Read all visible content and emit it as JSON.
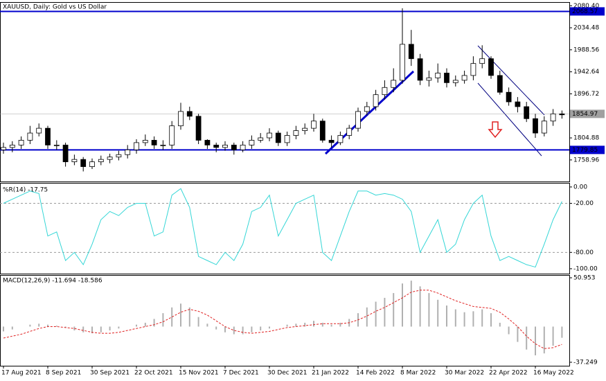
{
  "chart_data": [
    {
      "type": "candlestick",
      "title": "XAUUSD, Daily:  Gold vs US Dollar",
      "open": [
        1780,
        1785,
        1790,
        1800,
        1815,
        1825,
        1790,
        1790,
        1755,
        1760,
        1745,
        1755,
        1760,
        1765,
        1770,
        1780,
        1795,
        1800,
        1790,
        1790,
        1830,
        1860,
        1850,
        1800,
        1790,
        1785,
        1790,
        1780,
        1790,
        1800,
        1805,
        1815,
        1795,
        1810,
        1820,
        1825,
        1840,
        1800,
        1795,
        1810,
        1825,
        1860,
        1870,
        1895,
        1910,
        1925,
        2000,
        1970,
        1925,
        1930,
        1940,
        1920,
        1925,
        1935,
        1960,
        1970,
        1935,
        1900,
        1880,
        1870,
        1845,
        1815,
        1840,
        1855
      ],
      "high": [
        1795,
        1798,
        1808,
        1830,
        1835,
        1830,
        1800,
        1795,
        1770,
        1765,
        1762,
        1768,
        1772,
        1778,
        1790,
        1802,
        1812,
        1808,
        1800,
        1840,
        1878,
        1870,
        1855,
        1802,
        1795,
        1798,
        1795,
        1798,
        1810,
        1815,
        1825,
        1820,
        1818,
        1830,
        1835,
        1855,
        1845,
        1810,
        1818,
        1832,
        1868,
        1880,
        1905,
        1925,
        1950,
        2075,
        2030,
        1980,
        1945,
        1960,
        1950,
        1935,
        1945,
        1975,
        1998,
        1975,
        1945,
        1910,
        1890,
        1880,
        1855,
        1850,
        1865,
        1862
      ],
      "low": [
        1772,
        1775,
        1782,
        1792,
        1808,
        1782,
        1780,
        1745,
        1748,
        1735,
        1740,
        1748,
        1752,
        1758,
        1762,
        1772,
        1788,
        1782,
        1780,
        1782,
        1822,
        1842,
        1792,
        1782,
        1775,
        1778,
        1770,
        1775,
        1782,
        1795,
        1798,
        1788,
        1788,
        1802,
        1812,
        1818,
        1795,
        1785,
        1790,
        1802,
        1818,
        1852,
        1862,
        1885,
        1900,
        1918,
        1955,
        1915,
        1912,
        1920,
        1910,
        1912,
        1918,
        1925,
        1950,
        1928,
        1895,
        1872,
        1858,
        1838,
        1805,
        1808,
        1830,
        1845
      ],
      "close": [
        1785,
        1790,
        1800,
        1815,
        1825,
        1790,
        1790,
        1755,
        1760,
        1745,
        1755,
        1760,
        1765,
        1770,
        1780,
        1795,
        1800,
        1790,
        1790,
        1830,
        1860,
        1850,
        1800,
        1790,
        1785,
        1790,
        1780,
        1790,
        1800,
        1805,
        1815,
        1795,
        1810,
        1820,
        1825,
        1840,
        1800,
        1795,
        1810,
        1825,
        1860,
        1870,
        1895,
        1910,
        1925,
        2000,
        1970,
        1925,
        1930,
        1940,
        1920,
        1925,
        1935,
        1960,
        1970,
        1935,
        1900,
        1880,
        1870,
        1845,
        1815,
        1840,
        1855,
        1853
      ],
      "ylim": [
        1714,
        2088
      ],
      "yticks": [
        {
          "value": 2080.4,
          "label": "2080.40"
        },
        {
          "value": 2034.48,
          "label": "2034.48"
        },
        {
          "value": 1988.56,
          "label": "1988.56"
        },
        {
          "value": 1942.64,
          "label": "1942.64"
        },
        {
          "value": 1896.72,
          "label": "1896.72"
        },
        {
          "value": 1804.88,
          "label": "1804.88"
        },
        {
          "value": 1758.96,
          "label": "1758.96"
        }
      ],
      "levels": [
        {
          "value": 2068.57,
          "label": "2068.57",
          "color": "#0000cc"
        },
        {
          "value": 1779.85,
          "label": "1779.85",
          "color": "#0000cc"
        }
      ],
      "current_price": {
        "value": 1854.97,
        "label": "1854.97",
        "color": "#a0a0a0"
      }
    },
    {
      "type": "line",
      "title": "%R(14) -17.75",
      "color": "#33d6d6",
      "values": [
        -20,
        -15,
        -10,
        -5,
        -8,
        -60,
        -55,
        -90,
        -80,
        -95,
        -70,
        -40,
        -30,
        -35,
        -25,
        -20,
        -20,
        -60,
        -55,
        -10,
        -2,
        -25,
        -85,
        -90,
        -95,
        -80,
        -90,
        -70,
        -30,
        -25,
        -10,
        -60,
        -40,
        -20,
        -15,
        -10,
        -80,
        -90,
        -60,
        -30,
        -5,
        -5,
        -10,
        -8,
        -10,
        -15,
        -30,
        -80,
        -60,
        -40,
        -80,
        -70,
        -40,
        -20,
        -10,
        -60,
        -90,
        -85,
        -90,
        -95,
        -98,
        -70,
        -40,
        -17.75
      ],
      "ylim": [
        -106,
        5
      ],
      "yticks": [
        {
          "value": 0,
          "label": "0.00"
        },
        {
          "value": -20,
          "label": "-20.00"
        },
        {
          "value": -80,
          "label": "-80.00"
        },
        {
          "value": -100,
          "label": "-100.00"
        }
      ],
      "levels": [
        -20,
        -80
      ]
    },
    {
      "type": "macd",
      "title": "MACD(12,26,9) -11.694 -18.586",
      "series": [
        {
          "name": "MACD",
          "color": "#b0b0b0",
          "values": [
            -5,
            -3,
            0,
            2,
            3,
            2,
            1,
            -1,
            -4,
            -6,
            -7,
            -6,
            -4,
            -2,
            0,
            2,
            4,
            8,
            14,
            20,
            24,
            20,
            10,
            3,
            -3,
            -6,
            -8,
            -8,
            -6,
            -4,
            -2,
            0,
            2,
            3,
            4,
            6,
            4,
            2,
            4,
            8,
            14,
            20,
            26,
            30,
            35,
            45,
            48,
            42,
            35,
            28,
            22,
            18,
            15,
            16,
            18,
            14,
            4,
            -8,
            -16,
            -24,
            -30,
            -28,
            -20,
            -11.694
          ]
        },
        {
          "name": "Signal",
          "color": "#e02020",
          "values": [
            -12,
            -10,
            -8,
            -5,
            -2,
            0,
            0,
            -1,
            -2,
            -4,
            -6,
            -7,
            -7,
            -6,
            -4,
            -2,
            0,
            2,
            5,
            10,
            15,
            18,
            16,
            12,
            6,
            0,
            -4,
            -6,
            -7,
            -6,
            -5,
            -3,
            -1,
            0,
            1,
            2,
            3,
            3,
            3,
            4,
            7,
            11,
            16,
            20,
            25,
            30,
            36,
            38,
            38,
            35,
            31,
            27,
            24,
            21,
            20,
            19,
            15,
            8,
            0,
            -10,
            -18,
            -23,
            -22,
            -18.586
          ]
        }
      ],
      "ylim": [
        -40.9,
        53.85
      ],
      "yticks": [
        50.953,
        -37.249
      ],
      "categories": [
        "17 Aug 2021",
        null,
        null,
        null,
        null,
        "8 Sep 2021",
        null,
        null,
        null,
        null,
        "30 Sep 2021",
        null,
        null,
        null,
        null,
        "22 Oct 2021",
        null,
        null,
        null,
        null,
        "15 Nov 2021",
        null,
        null,
        null,
        null,
        "7 Dec 2021",
        null,
        null,
        null,
        null,
        "30 Dec 2021",
        null,
        null,
        null,
        null,
        "21 Jan 2022",
        null,
        null,
        null,
        null,
        "14 Feb 2022",
        null,
        null,
        null,
        null,
        "8 Mar 2022",
        null,
        null,
        null,
        null,
        "30 Mar 2022",
        null,
        null,
        null,
        null,
        "22 Apr 2022",
        null,
        null,
        null,
        null,
        "16 May 2022",
        null,
        null,
        null
      ]
    }
  ]
}
